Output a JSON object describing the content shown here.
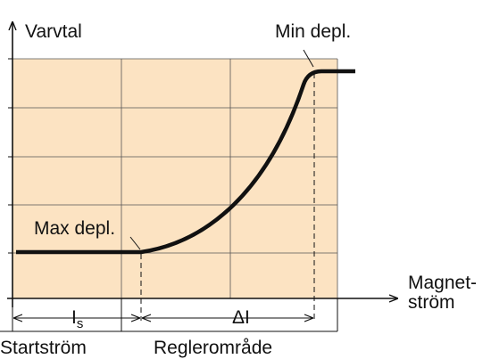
{
  "labels": {
    "y_axis": "Varvtal",
    "x_axis_line1": "Magnet-",
    "x_axis_line2": "ström",
    "min_depl": "Min depl.",
    "max_depl": "Max depl.",
    "is_main": "I",
    "is_sub": "s",
    "delta_i": "ΔI",
    "startstrom": "Startström",
    "reglerområde": "Reglerområde"
  }
}
